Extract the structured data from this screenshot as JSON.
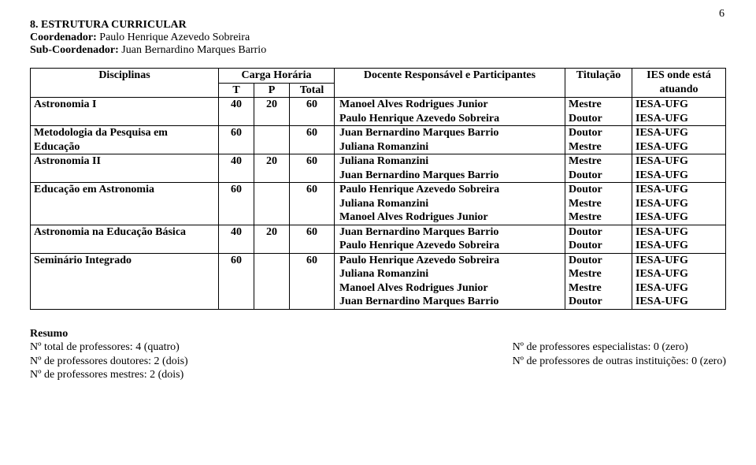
{
  "page_number": "6",
  "section_title": "8. ESTRUTURA CURRICULAR",
  "coord_label": "Coordenador:",
  "coord_name": "Paulo Henrique Azevedo Sobreira",
  "subcoord_label": "Sub-Coordenador:",
  "subcoord_name": "Juan Bernardino Marques Barrio",
  "headers": {
    "disciplinas": "Disciplinas",
    "carga_horaria": "Carga Horária",
    "docente": "Docente Responsável e Participantes",
    "titulacao": "Titulação",
    "ies": "IES onde está atuando",
    "t": "T",
    "p": "P",
    "total": "Total"
  },
  "rows": [
    {
      "disc": "Astronomia I",
      "t": "40",
      "p": "20",
      "total": "60",
      "docs": [
        "Manoel Alves Rodrigues Junior",
        "Paulo Henrique Azevedo Sobreira"
      ],
      "tits": [
        "Mestre",
        "Doutor"
      ],
      "ies": [
        "IESA-UFG",
        "IESA-UFG"
      ]
    },
    {
      "disc": "Metodologia da Pesquisa em Educação",
      "t": "60",
      "p": "",
      "total": "60",
      "docs": [
        "Juan Bernardino Marques Barrio",
        "Juliana Romanzini"
      ],
      "tits": [
        "Doutor",
        "Mestre"
      ],
      "ies": [
        "IESA-UFG",
        "IESA-UFG"
      ]
    },
    {
      "disc": "Astronomia II",
      "t": "40",
      "p": "20",
      "total": "60",
      "docs": [
        "Juliana Romanzini",
        "Juan Bernardino Marques Barrio"
      ],
      "tits": [
        "Mestre",
        "Doutor"
      ],
      "ies": [
        "IESA-UFG",
        "IESA-UFG"
      ]
    },
    {
      "disc": "Educação em Astronomia",
      "t": "60",
      "p": "",
      "total": "60",
      "docs": [
        "Paulo Henrique Azevedo Sobreira",
        "Juliana Romanzini",
        "Manoel Alves Rodrigues Junior"
      ],
      "tits": [
        "Doutor",
        "Mestre",
        "Mestre"
      ],
      "ies": [
        "IESA-UFG",
        "IESA-UFG",
        "IESA-UFG"
      ]
    },
    {
      "disc": "Astronomia na Educação Básica",
      "t": "40",
      "p": "20",
      "total": "60",
      "docs": [
        "Juan Bernardino Marques Barrio",
        "Paulo Henrique Azevedo Sobreira"
      ],
      "tits": [
        "Doutor",
        "Doutor"
      ],
      "ies": [
        "IESA-UFG",
        "IESA-UFG"
      ]
    },
    {
      "disc": "Seminário Integrado",
      "t": "60",
      "p": "",
      "total": "60",
      "docs": [
        "Paulo Henrique Azevedo Sobreira",
        "Juliana Romanzini",
        "Manoel Alves Rodrigues Junior",
        "Juan Bernardino Marques Barrio"
      ],
      "tits": [
        "Doutor",
        "Mestre",
        "Mestre",
        "Doutor"
      ],
      "ies": [
        "IESA-UFG",
        "IESA-UFG",
        "IESA-UFG",
        "IESA-UFG"
      ]
    }
  ],
  "resume": {
    "title": "Resumo",
    "left": [
      "Nº total de professores: 4 (quatro)",
      "Nº de professores doutores: 2 (dois)",
      "Nº de professores mestres: 2 (dois)"
    ],
    "right": [
      "Nº de professores especialistas: 0 (zero)",
      "Nº de professores de outras instituições: 0 (zero)"
    ]
  }
}
